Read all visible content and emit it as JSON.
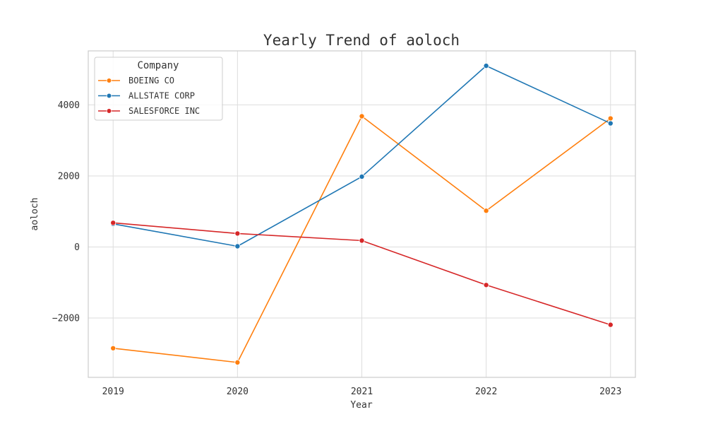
{
  "chart_data": {
    "type": "line",
    "title": "Yearly Trend of aoloch",
    "xlabel": "Year",
    "ylabel": "aoloch",
    "x": [
      2019,
      2020,
      2021,
      2022,
      2023
    ],
    "x_tick_labels": [
      "2019",
      "2020",
      "2021",
      "2022",
      "2023"
    ],
    "y_ticks": [
      -2000,
      0,
      2000,
      4000
    ],
    "y_tick_labels": [
      "−2000",
      "0",
      "2000",
      "4000"
    ],
    "xlim": [
      2018.8,
      2023.2
    ],
    "ylim": [
      -3670,
      5520
    ],
    "grid": true,
    "legend": {
      "title": "Company",
      "placement": "top-left"
    },
    "series": [
      {
        "name": "BOEING CO",
        "color": "#ff7f0e",
        "values": [
          -2850,
          -3250,
          3680,
          1020,
          3620
        ]
      },
      {
        "name": "ALLSTATE CORP",
        "color": "#1f77b4",
        "values": [
          650,
          20,
          1980,
          5100,
          3480
        ]
      },
      {
        "name": "SALESFORCE INC",
        "color": "#d62728",
        "values": [
          680,
          380,
          180,
          -1070,
          -2190
        ]
      }
    ]
  }
}
